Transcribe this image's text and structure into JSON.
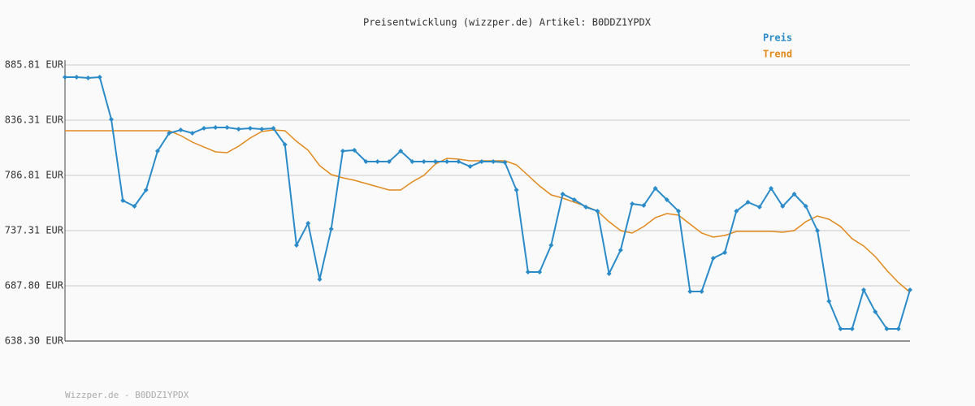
{
  "chart_data": {
    "type": "line",
    "title": "Preisentwicklung (wizzper.de) Artikel: B0DDZ1YPDX",
    "footer": "Wizzper.de - B0DDZ1YPDX",
    "legend": "top-right",
    "grid": true,
    "ylim": [
      638.3,
      885.81
    ],
    "yticks": [
      {
        "value": 638.3,
        "label": "638.30 EUR"
      },
      {
        "value": 687.8,
        "label": "687.80 EUR"
      },
      {
        "value": 737.31,
        "label": "737.31 EUR"
      },
      {
        "value": 786.81,
        "label": "786.81 EUR"
      },
      {
        "value": 836.31,
        "label": "836.31 EUR"
      },
      {
        "value": 885.81,
        "label": "885.81 EUR"
      }
    ],
    "series": [
      {
        "name": "Preis",
        "color": "#2a8bc8",
        "markers": true,
        "values": [
          874.89,
          874.89,
          874.16,
          874.89,
          837.04,
          764.24,
          759.14,
          773.7,
          808.65,
          824.66,
          827.57,
          824.66,
          829.03,
          829.76,
          829.76,
          828.3,
          829.03,
          828.3,
          829.03,
          814.47,
          724.2,
          743.86,
          693.63,
          738.76,
          808.65,
          809.37,
          799.18,
          799.18,
          799.18,
          808.65,
          799.18,
          799.18,
          799.18,
          799.18,
          799.18,
          794.81,
          799.18,
          799.18,
          798.45,
          773.7,
          700.18,
          700.18,
          724.2,
          770.06,
          764.97,
          758.42,
          754.78,
          698.72,
          719.83,
          761.33,
          759.87,
          775.16,
          764.97,
          754.78,
          682.71,
          682.71,
          712.55,
          717.65,
          754.78,
          762.78,
          758.42,
          775.16,
          759.14,
          770.06,
          759.14,
          737.3,
          673.97,
          649.22,
          649.22,
          684.16,
          664.51,
          649.22,
          649.22,
          684.16
        ]
      },
      {
        "name": "Trend",
        "color": "#e08a1e",
        "markers": false,
        "values": [
          826.84,
          826.84,
          826.84,
          826.84,
          826.84,
          826.84,
          826.84,
          826.84,
          826.84,
          826.84,
          822.48,
          816.65,
          812.28,
          807.92,
          807.19,
          813.01,
          820.29,
          826.12,
          827.57,
          826.84,
          817.38,
          809.37,
          795.54,
          787.53,
          784.62,
          782.44,
          779.53,
          776.61,
          773.7,
          773.7,
          780.98,
          786.81,
          797.0,
          802.09,
          801.37,
          799.91,
          799.91,
          799.91,
          799.91,
          796.27,
          786.81,
          777.34,
          769.33,
          766.42,
          762.78,
          759.14,
          754.78,
          745.31,
          737.3,
          735.12,
          740.94,
          748.95,
          752.59,
          751.14,
          743.13,
          735.12,
          731.48,
          732.94,
          736.58,
          736.58,
          736.58,
          736.58,
          735.85,
          737.3,
          745.31,
          750.41,
          747.5,
          740.94,
          730.02,
          723.47,
          714.01,
          701.63,
          690.71,
          681.98
        ]
      }
    ]
  }
}
